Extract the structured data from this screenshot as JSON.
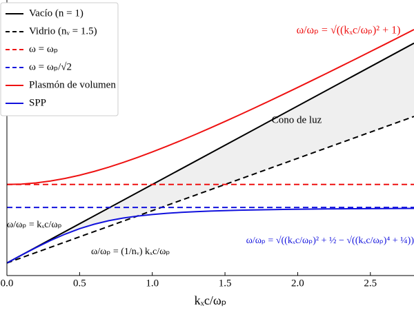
{
  "chart_data": {
    "type": "line",
    "xlabel": "kₓc/ωₚ",
    "xlim": [
      0,
      2.8
    ],
    "ylim": [
      -0.16,
      3.35
    ],
    "xticks": [
      {
        "value": 0,
        "label": "0.0"
      },
      0.5,
      {
        "value": 1,
        "label": "1.0"
      },
      1.5,
      {
        "value": 2,
        "label": "2.0"
      },
      2.5
    ],
    "legend": "upper left",
    "series": [
      {
        "name": "Vacío (n = 1)",
        "color": "#000000",
        "dash": false,
        "x": [
          0,
          2.8
        ],
        "values": [
          0,
          2.8
        ]
      },
      {
        "name": "Vidrio (nᵥ = 1.5)",
        "color": "#000000",
        "dash": true,
        "x": [
          0,
          2.8
        ],
        "values": [
          0,
          1.8667
        ]
      },
      {
        "name": "ω = ωₚ",
        "color": "#ee1111",
        "dash": true,
        "x": [
          0,
          2.8
        ],
        "values": [
          1,
          1
        ]
      },
      {
        "name": "ω = ωₚ/√2",
        "color": "#1111dd",
        "dash": true,
        "x": [
          0,
          2.8
        ],
        "values": [
          0.7071,
          0.7071
        ]
      },
      {
        "name": "Plasmón de volumen",
        "color": "#ee1111",
        "dash": false,
        "x": [
          0,
          0.1,
          0.2,
          0.3,
          0.4,
          0.5,
          0.6,
          0.7,
          0.8,
          0.9,
          1.0,
          1.1,
          1.2,
          1.3,
          1.4,
          1.5,
          1.6,
          1.7,
          1.8,
          1.9,
          2.0,
          2.1,
          2.2,
          2.3,
          2.4,
          2.5,
          2.6,
          2.7,
          2.8
        ],
        "values": [
          1,
          1.005,
          1.0198,
          1.044,
          1.077,
          1.118,
          1.1662,
          1.2207,
          1.2806,
          1.3454,
          1.4142,
          1.4866,
          1.562,
          1.6401,
          1.7205,
          1.8028,
          1.8868,
          1.9723,
          2.0591,
          2.1471,
          2.2361,
          2.3259,
          2.4166,
          2.508,
          2.6,
          2.6926,
          2.7857,
          2.8792,
          2.9732
        ]
      },
      {
        "name": "SPP",
        "color": "#1111dd",
        "dash": false,
        "x": [
          0,
          0.1,
          0.2,
          0.3,
          0.4,
          0.5,
          0.6,
          0.7,
          0.8,
          0.9,
          1.0,
          1.1,
          1.2,
          1.3,
          1.4,
          1.5,
          1.6,
          1.7,
          1.8,
          1.9,
          2.0,
          2.1,
          2.2,
          2.3,
          2.4,
          2.5,
          2.6,
          2.7,
          2.8
        ],
        "values": [
          0,
          0.0995,
          0.196,
          0.2863,
          0.3675,
          0.437,
          0.4938,
          0.5385,
          0.5726,
          0.5984,
          0.618,
          0.6331,
          0.6447,
          0.6539,
          0.6612,
          0.6672,
          0.672,
          0.6761,
          0.6794,
          0.6823,
          0.6847,
          0.6868,
          0.6886,
          0.6902,
          0.6916,
          0.6928,
          0.6939,
          0.6949,
          0.6957
        ]
      }
    ],
    "annotations": [
      {
        "text": "ω/ωₚ = √((kₓc/ωₚ)² + 1)",
        "color": "#ee1111"
      },
      {
        "text": "Cono de luz",
        "color": "#000000"
      },
      {
        "text": "ω/ωₚ = kₓc/ωₚ",
        "color": "#000000"
      },
      {
        "text": "ω/ωₚ = (1/nᵥ) kₓc/ωₚ",
        "color": "#000000"
      },
      {
        "text": "ω/ωₚ = √((kₓc/ωₚ)² + ½ − √((kₓc/ωₚ)⁴ + ¼))",
        "color": "#1111dd"
      }
    ]
  }
}
